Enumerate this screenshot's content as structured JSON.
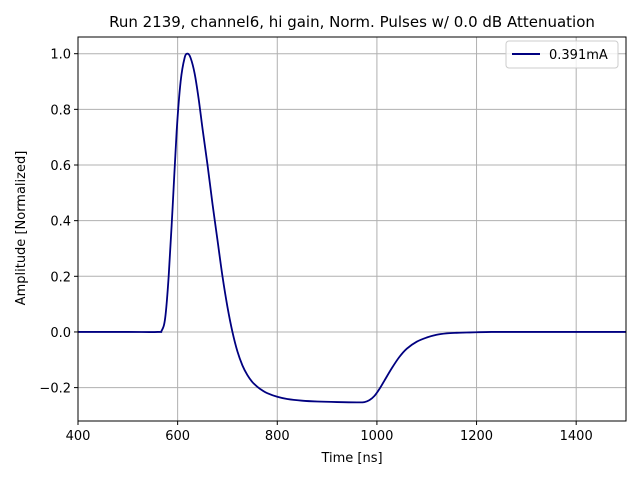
{
  "chart_data": {
    "type": "line",
    "title": "Run 2139, channel6, hi gain, Norm. Pulses w/ 0.0 dB Attenuation",
    "xlabel": "Time [ns]",
    "ylabel": "Amplitude [Normalized]",
    "xlim": [
      400,
      1500
    ],
    "ylim": [
      -0.32,
      1.06
    ],
    "xticks": [
      400,
      600,
      800,
      1000,
      1200,
      1400
    ],
    "yticks": [
      -0.2,
      0.0,
      0.2,
      0.4,
      0.6,
      0.8,
      1.0
    ],
    "ytick_labels": [
      "−0.2",
      "0.0",
      "0.2",
      "0.4",
      "0.6",
      "0.8",
      "1.0"
    ],
    "grid": true,
    "legend_position": "top-right",
    "series": [
      {
        "name": "0.391mA",
        "color": "#000080",
        "x": [
          400,
          500,
          560,
          568,
          575,
          582,
          590,
          598,
          606,
          614,
          620,
          626,
          634,
          642,
          650,
          660,
          670,
          680,
          690,
          700,
          710,
          720,
          730,
          740,
          750,
          760,
          770,
          780,
          800,
          820,
          850,
          880,
          920,
          960,
          975,
          985,
          995,
          1005,
          1015,
          1030,
          1045,
          1060,
          1080,
          1100,
          1120,
          1140,
          1160,
          1180,
          1200,
          1230,
          1260,
          1300,
          1400,
          1500
        ],
        "y": [
          0.0,
          0.0,
          0.0,
          0.005,
          0.05,
          0.2,
          0.45,
          0.72,
          0.9,
          0.985,
          1.0,
          0.985,
          0.93,
          0.84,
          0.73,
          0.6,
          0.46,
          0.33,
          0.2,
          0.09,
          0.0,
          -0.07,
          -0.12,
          -0.155,
          -0.18,
          -0.197,
          -0.21,
          -0.22,
          -0.233,
          -0.241,
          -0.247,
          -0.25,
          -0.252,
          -0.253,
          -0.252,
          -0.245,
          -0.23,
          -0.205,
          -0.175,
          -0.13,
          -0.09,
          -0.06,
          -0.035,
          -0.02,
          -0.01,
          -0.005,
          -0.003,
          -0.002,
          -0.001,
          0.0,
          0.0,
          0.0,
          0.0,
          0.0
        ]
      }
    ]
  }
}
